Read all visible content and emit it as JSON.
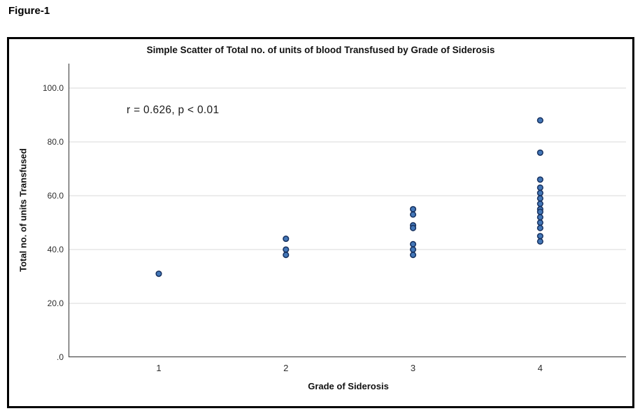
{
  "figure_label": "Figure-1",
  "chart_data": {
    "type": "scatter",
    "title": "Simple Scatter of Total no. of units of blood Transfused by Grade of Siderosis",
    "xlabel": "Grade of Siderosis",
    "ylabel": "Total no. of units Transfused",
    "annotation": "r = 0.626, p < 0.01",
    "x_tick_labels": [
      "1",
      "2",
      "3",
      "4"
    ],
    "y_tick_labels": [
      ".0",
      "20.0",
      "40.0",
      "60.0",
      "80.0",
      "100.0"
    ],
    "y_tick_values": [
      0,
      20,
      40,
      60,
      80,
      100
    ],
    "xlim_categories": [
      1,
      4
    ],
    "ylim": [
      0,
      109
    ],
    "grid": true,
    "legend": "none",
    "colors": {
      "marker_fill": "#4377b8",
      "marker_stroke": "#16305e",
      "gridline": "#d9d9d9",
      "axis_line": "#4d4d4d"
    },
    "points": [
      {
        "x": 1,
        "y": 31
      },
      {
        "x": 2,
        "y": 44
      },
      {
        "x": 2,
        "y": 40
      },
      {
        "x": 2,
        "y": 38
      },
      {
        "x": 3,
        "y": 55
      },
      {
        "x": 3,
        "y": 53
      },
      {
        "x": 3,
        "y": 49
      },
      {
        "x": 3,
        "y": 48
      },
      {
        "x": 3,
        "y": 42
      },
      {
        "x": 3,
        "y": 40
      },
      {
        "x": 3,
        "y": 38
      },
      {
        "x": 4,
        "y": 88
      },
      {
        "x": 4,
        "y": 76
      },
      {
        "x": 4,
        "y": 66
      },
      {
        "x": 4,
        "y": 63
      },
      {
        "x": 4,
        "y": 61
      },
      {
        "x": 4,
        "y": 59
      },
      {
        "x": 4,
        "y": 57
      },
      {
        "x": 4,
        "y": 55
      },
      {
        "x": 4,
        "y": 54
      },
      {
        "x": 4,
        "y": 52
      },
      {
        "x": 4,
        "y": 50
      },
      {
        "x": 4,
        "y": 48
      },
      {
        "x": 4,
        "y": 45
      },
      {
        "x": 4,
        "y": 43
      }
    ]
  }
}
